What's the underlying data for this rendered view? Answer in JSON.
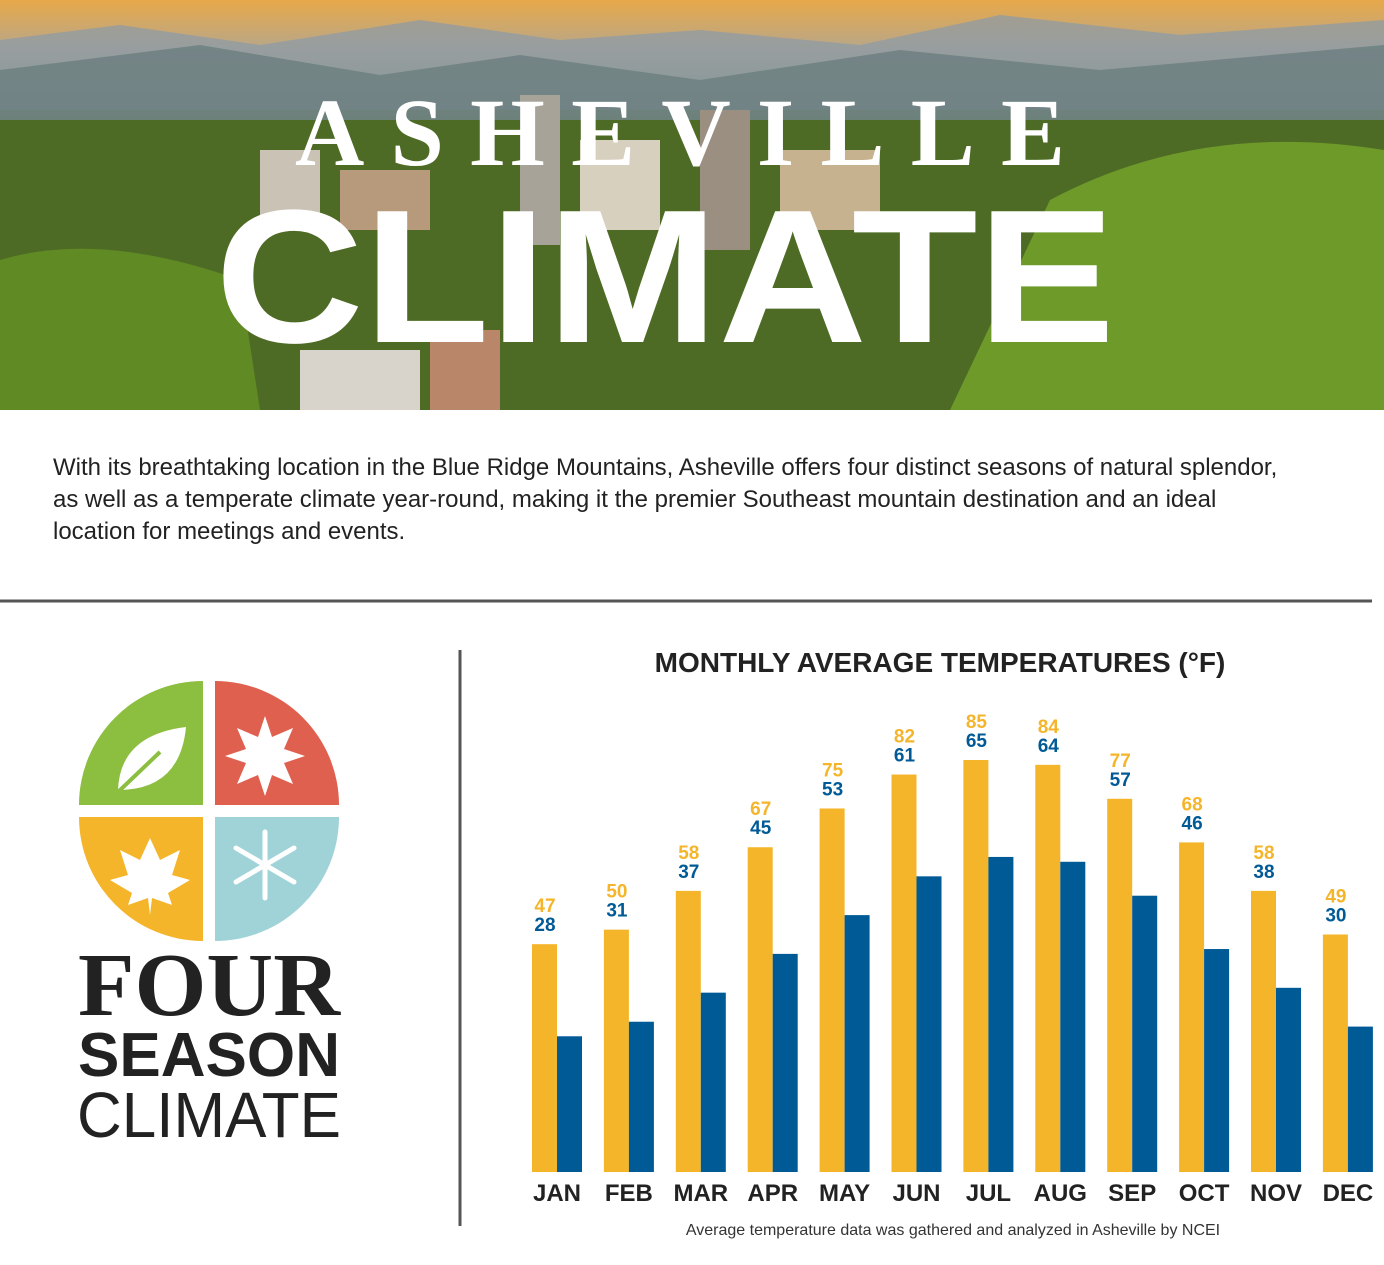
{
  "header": {
    "title_top": "ASHEVILLE",
    "title_main": "CLIMATE"
  },
  "intro": "With its breathtaking location in the Blue Ridge Mountains, Asheville offers four distinct seasons of natural splendor, as well as a temperate climate year-round, making it the premier Southeast mountain destination and an ideal location for meetings and events.",
  "logo": {
    "line1": "FOUR",
    "line2": "SEASON",
    "line3": "CLIMATE"
  },
  "chart_data": {
    "type": "bar",
    "title": "MONTHLY AVERAGE TEMPERATURES (°F)",
    "categories": [
      "JAN",
      "FEB",
      "MAR",
      "APR",
      "MAY",
      "JUN",
      "JUL",
      "AUG",
      "SEP",
      "OCT",
      "NOV",
      "DEC"
    ],
    "series": [
      {
        "color": "#f5b52a",
        "values": [
          47,
          50,
          58,
          67,
          75,
          82,
          85,
          84,
          77,
          68,
          58,
          49
        ]
      },
      {
        "color": "#005a96",
        "values": [
          28,
          31,
          37,
          45,
          53,
          61,
          65,
          64,
          57,
          46,
          38,
          30
        ]
      }
    ],
    "footnote": "Average temperature data was gathered and analyzed in Asheville by NCEI"
  }
}
